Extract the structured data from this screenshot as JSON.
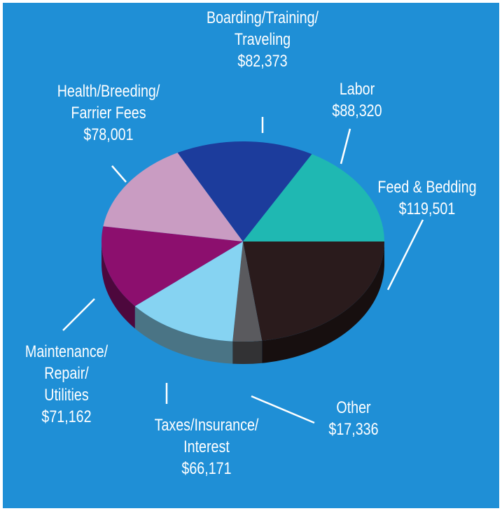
{
  "chart_data": {
    "type": "pie",
    "categories": [
      "Feed & Bedding",
      "Other",
      "Taxes/Insurance/\nInterest",
      "Maintenance/\nRepair/\nUtilities",
      "Health/Breeding/\nFarrier Fees",
      "Boarding/Training/\nTraveling",
      "Labor"
    ],
    "values": [
      119501,
      17336,
      66171,
      71162,
      78001,
      82373,
      88320
    ],
    "value_labels": [
      "$119,501",
      "$17,336",
      "$66,171",
      "$71,162",
      "$78,001",
      "$82,373",
      "$88,320"
    ],
    "colors": [
      "#2a1b1c",
      "#5a5a5e",
      "#86d3f2",
      "#8c0f6e",
      "#c99cc2",
      "#1c3c9c",
      "#1fb8b2"
    ]
  }
}
